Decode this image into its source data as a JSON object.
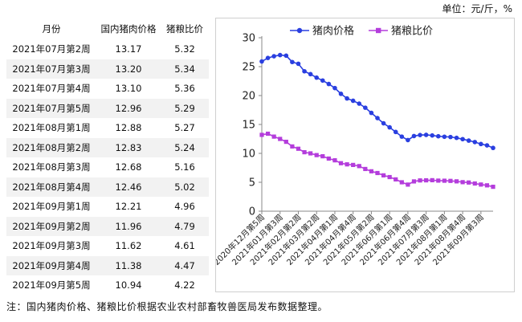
{
  "unit_label": "单位：元/斤，%",
  "note": "注：国内猪肉价格、猪粮比价根据农业农村部畜牧兽医局发布数据整理。",
  "table": {
    "headers": [
      "月份",
      "国内猪肉价格",
      "猪粮比价"
    ],
    "rows": [
      [
        "2021年07月第2周",
        "13.17",
        "5.32"
      ],
      [
        "2021年07月第3周",
        "13.20",
        "5.34"
      ],
      [
        "2021年07月第4周",
        "13.10",
        "5.36"
      ],
      [
        "2021年07月第5周",
        "12.96",
        "5.29"
      ],
      [
        "2021年08月第1周",
        "12.88",
        "5.27"
      ],
      [
        "2021年08月第2周",
        "12.83",
        "5.24"
      ],
      [
        "2021年08月第3周",
        "12.68",
        "5.16"
      ],
      [
        "2021年08月第4周",
        "12.46",
        "5.02"
      ],
      [
        "2021年09月第1周",
        "12.21",
        "4.96"
      ],
      [
        "2021年09月第2周",
        "11.96",
        "4.79"
      ],
      [
        "2021年09月第3周",
        "11.62",
        "4.61"
      ],
      [
        "2021年09月第4周",
        "11.38",
        "4.47"
      ],
      [
        "2021年09月第5周",
        "10.94",
        "4.22"
      ]
    ]
  },
  "chart_data": {
    "type": "line",
    "ylim": [
      0,
      30
    ],
    "yticks": [
      0,
      5,
      10,
      15,
      20,
      25,
      30
    ],
    "xlabels": [
      "2020年12月第5周",
      "2021年01月第3周",
      "2021年02月第2周",
      "2021年03月第2周",
      "2021年04月第1周",
      "2021年04月第4周",
      "2021年05月第2周",
      "2021年06月第1周",
      "2021年06月第4周",
      "2021年07月第3周",
      "2021年08月第1周",
      "2021年08月第4周",
      "2021年09月第3周"
    ],
    "legend_position": "top",
    "series": [
      {
        "name": "猪肉价格",
        "color": "#2a3fe0",
        "marker": "circle",
        "values": [
          25.9,
          26.5,
          26.8,
          27.0,
          26.9,
          25.8,
          25.5,
          24.2,
          23.7,
          23.1,
          22.6,
          22.0,
          21.3,
          20.3,
          19.5,
          19.1,
          18.6,
          17.9,
          17.0,
          16.1,
          15.2,
          14.5,
          13.7,
          12.9,
          12.3,
          13.0,
          13.17,
          13.2,
          13.1,
          12.96,
          12.88,
          12.83,
          12.68,
          12.46,
          12.21,
          11.96,
          11.62,
          11.38,
          10.94
        ]
      },
      {
        "name": "猪粮比价",
        "color": "#b43ddc",
        "marker": "square",
        "values": [
          13.2,
          13.4,
          12.9,
          12.5,
          12.0,
          11.2,
          10.8,
          10.2,
          10.0,
          9.7,
          9.5,
          9.1,
          8.8,
          8.3,
          8.1,
          8.0,
          7.8,
          7.3,
          6.9,
          6.6,
          6.2,
          5.9,
          5.5,
          5.0,
          4.6,
          5.15,
          5.32,
          5.34,
          5.36,
          5.29,
          5.27,
          5.24,
          5.16,
          5.02,
          4.96,
          4.79,
          4.61,
          4.47,
          4.22
        ]
      }
    ]
  }
}
